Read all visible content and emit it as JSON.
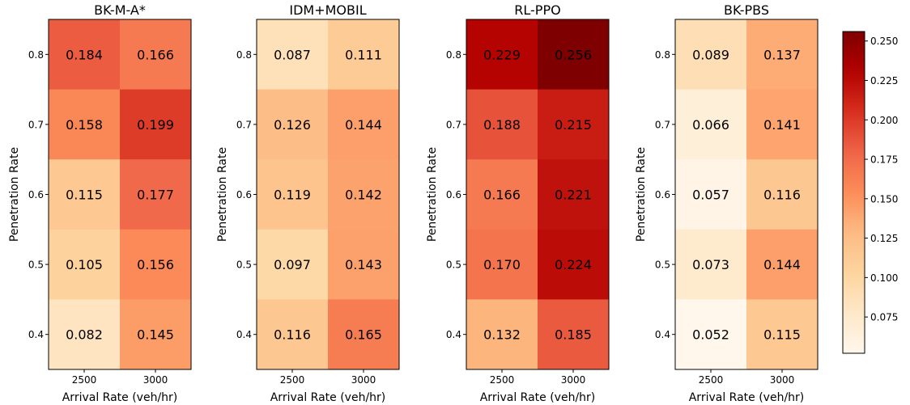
{
  "chart_data": {
    "type": "heatmap",
    "colormap": "OrRd",
    "value_range": [
      0.052,
      0.256
    ],
    "panels": [
      {
        "title": "BK-M-A*",
        "xlabel": "Arrival Rate (veh/hr)",
        "ylabel": "Penetration Rate",
        "x_categories": [
          "2500",
          "3000"
        ],
        "y_categories": [
          "0.8",
          "0.7",
          "0.6",
          "0.5",
          "0.4"
        ],
        "values": [
          [
            0.184,
            0.166
          ],
          [
            0.158,
            0.199
          ],
          [
            0.115,
            0.177
          ],
          [
            0.105,
            0.156
          ],
          [
            0.082,
            0.145
          ]
        ],
        "labels": [
          [
            "0.184",
            "0.166"
          ],
          [
            "0.158",
            "0.199"
          ],
          [
            "0.115",
            "0.177"
          ],
          [
            "0.105",
            "0.156"
          ],
          [
            "0.082",
            "0.145"
          ]
        ]
      },
      {
        "title": "IDM+MOBIL",
        "xlabel": "Arrival Rate (veh/hr)",
        "ylabel": "Penetration Rate",
        "x_categories": [
          "2500",
          "3000"
        ],
        "y_categories": [
          "0.8",
          "0.7",
          "0.6",
          "0.5",
          "0.4"
        ],
        "values": [
          [
            0.087,
            0.111
          ],
          [
            0.126,
            0.144
          ],
          [
            0.119,
            0.142
          ],
          [
            0.097,
            0.143
          ],
          [
            0.116,
            0.165
          ]
        ],
        "labels": [
          [
            "0.087",
            "0.111"
          ],
          [
            "0.126",
            "0.144"
          ],
          [
            "0.119",
            "0.142"
          ],
          [
            "0.097",
            "0.143"
          ],
          [
            "0.116",
            "0.165"
          ]
        ]
      },
      {
        "title": "RL-PPO",
        "xlabel": "Arrival Rate (veh/hr)",
        "ylabel": "Penetration Rate",
        "x_categories": [
          "2500",
          "3000"
        ],
        "y_categories": [
          "0.8",
          "0.7",
          "0.6",
          "0.5",
          "0.4"
        ],
        "values": [
          [
            0.229,
            0.256
          ],
          [
            0.188,
            0.215
          ],
          [
            0.166,
            0.221
          ],
          [
            0.17,
            0.224
          ],
          [
            0.132,
            0.185
          ]
        ],
        "labels": [
          [
            "0.229",
            "0.256"
          ],
          [
            "0.188",
            "0.215"
          ],
          [
            "0.166",
            "0.221"
          ],
          [
            "0.170",
            "0.224"
          ],
          [
            "0.132",
            "0.185"
          ]
        ]
      },
      {
        "title": "BK-PBS",
        "xlabel": "Arrival Rate (veh/hr)",
        "ylabel": "Penetration Rate",
        "x_categories": [
          "2500",
          "3000"
        ],
        "y_categories": [
          "0.8",
          "0.7",
          "0.6",
          "0.5",
          "0.4"
        ],
        "values": [
          [
            0.089,
            0.137
          ],
          [
            0.066,
            0.141
          ],
          [
            0.057,
            0.116
          ],
          [
            0.073,
            0.144
          ],
          [
            0.052,
            0.115
          ]
        ],
        "labels": [
          [
            "0.089",
            "0.137"
          ],
          [
            "0.066",
            "0.141"
          ],
          [
            "0.057",
            "0.116"
          ],
          [
            "0.073",
            "0.144"
          ],
          [
            "0.052",
            "0.115"
          ]
        ]
      }
    ],
    "colorbar": {
      "ticks": [
        0.075,
        0.1,
        0.125,
        0.15,
        0.175,
        0.2,
        0.225,
        0.25
      ],
      "tick_labels": [
        "0.075",
        "0.100",
        "0.125",
        "0.150",
        "0.175",
        "0.200",
        "0.225",
        "0.250"
      ]
    }
  }
}
